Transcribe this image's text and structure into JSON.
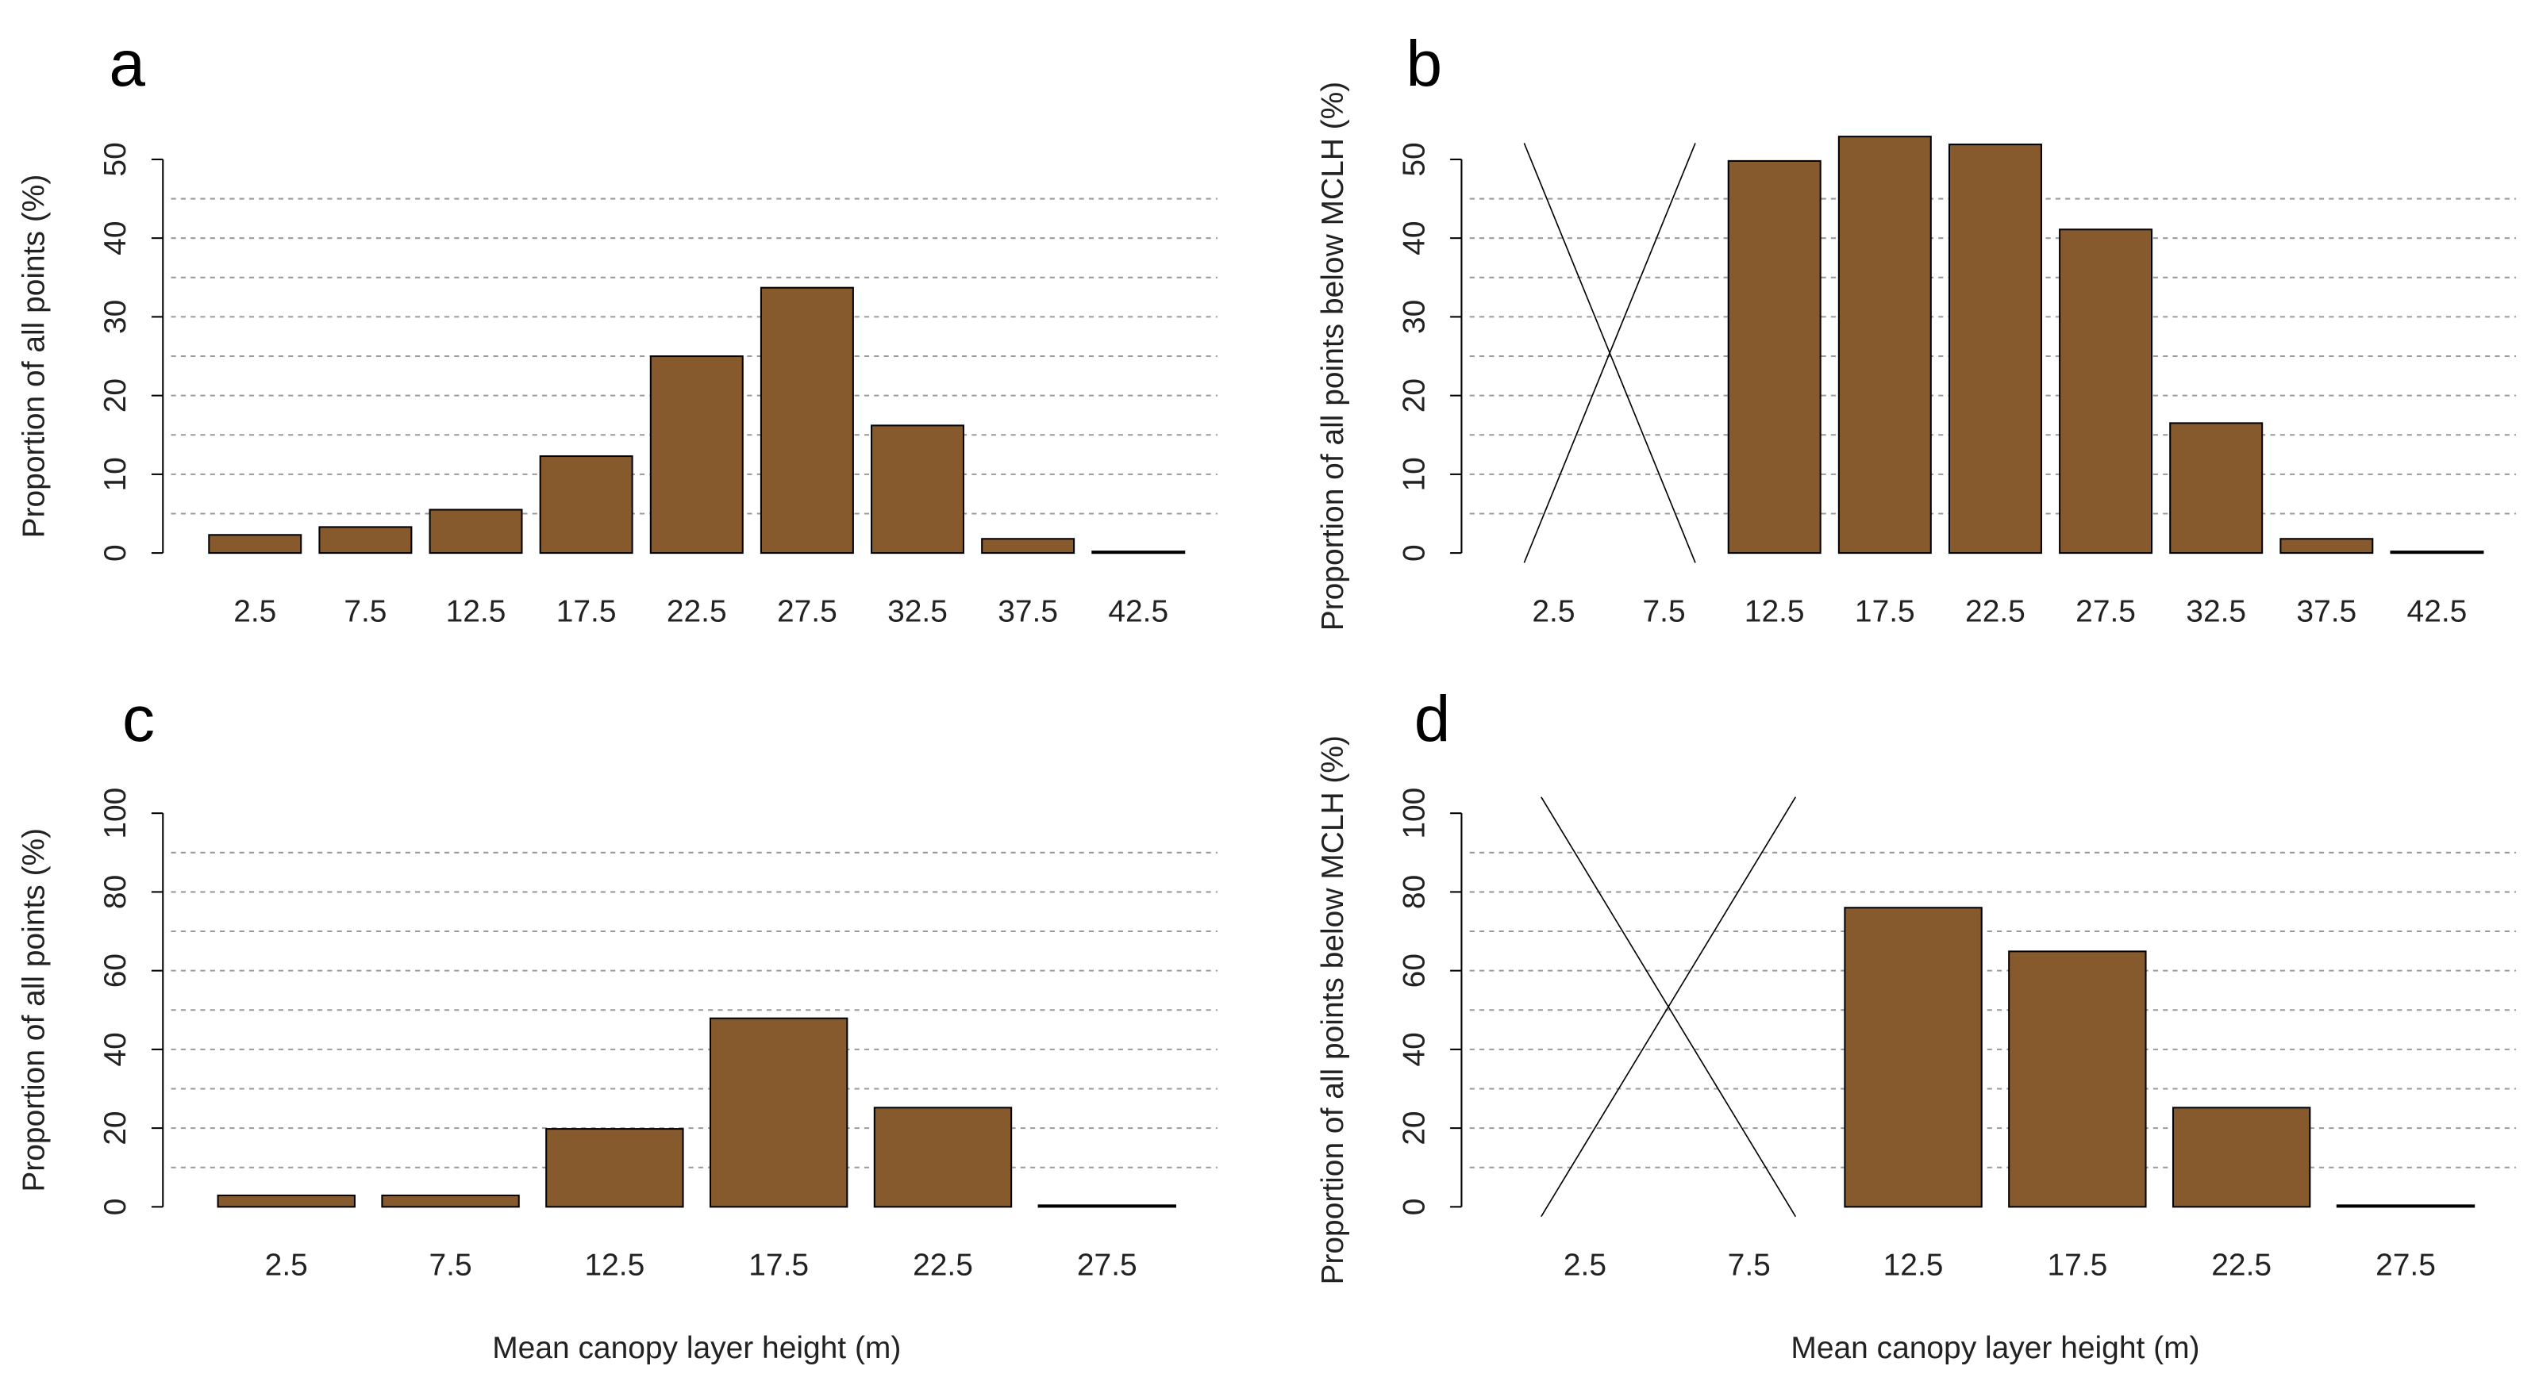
{
  "chart_data": [
    {
      "type": "bar",
      "panel_label": "a",
      "y_label": "Proportion of all points (%)",
      "categories": [
        "2.5",
        "7.5",
        "12.5",
        "17.5",
        "22.5",
        "27.5",
        "32.5",
        "37.5",
        "42.5"
      ],
      "values": [
        2.3,
        3.3,
        5.5,
        12.3,
        25,
        33.7,
        16.2,
        1.8,
        0.2
      ],
      "color": "#875a2e",
      "ylim": [
        0,
        50
      ],
      "yticks": [
        0,
        10,
        20,
        30,
        40,
        50
      ],
      "grid_lines": [
        5,
        10,
        15,
        20,
        25,
        30,
        35,
        40,
        45
      ]
    },
    {
      "type": "bar",
      "panel_label": "b",
      "y_label": "Proportion of all points below MCLH (%)",
      "categories": [
        "2.5",
        "7.5",
        "12.5",
        "17.5",
        "22.5",
        "27.5",
        "32.5",
        "37.5",
        "42.5"
      ],
      "values": [
        null,
        null,
        49.8,
        52.9,
        51.9,
        41.1,
        16.5,
        1.8,
        0.2
      ],
      "color": "#875a2e",
      "ylim": [
        0,
        50
      ],
      "yticks": [
        0,
        10,
        20,
        30,
        40,
        50
      ],
      "grid_lines": [
        5,
        10,
        15,
        20,
        25,
        30,
        35,
        40,
        45
      ]
    },
    {
      "type": "bar",
      "panel_label": "c",
      "y_label": "Proportion of all points (%)",
      "x_label": "Mean canopy layer height (m)",
      "categories": [
        "2.5",
        "7.5",
        "12.5",
        "17.5",
        "22.5",
        "27.5"
      ],
      "values": [
        2.9,
        2.9,
        19.8,
        47.9,
        25.2,
        0.4
      ],
      "color": "#875a2e",
      "ylim": [
        0,
        100
      ],
      "yticks": [
        0,
        20,
        40,
        60,
        80,
        100
      ],
      "grid_lines": [
        10,
        20,
        30,
        40,
        50,
        60,
        70,
        80,
        90
      ]
    },
    {
      "type": "bar",
      "panel_label": "d",
      "y_label": "Proportion of all points below MCLH (%)",
      "x_label": "Mean canopy layer height (m)",
      "categories": [
        "2.5",
        "7.5",
        "12.5",
        "17.5",
        "22.5",
        "27.5"
      ],
      "values": [
        null,
        null,
        76,
        64.9,
        25.2,
        0.4
      ],
      "color": "#875a2e",
      "ylim": [
        0,
        100
      ],
      "yticks": [
        0,
        20,
        40,
        60,
        80,
        100
      ],
      "grid_lines": [
        10,
        20,
        30,
        40,
        50,
        60,
        70,
        80,
        90
      ]
    }
  ]
}
